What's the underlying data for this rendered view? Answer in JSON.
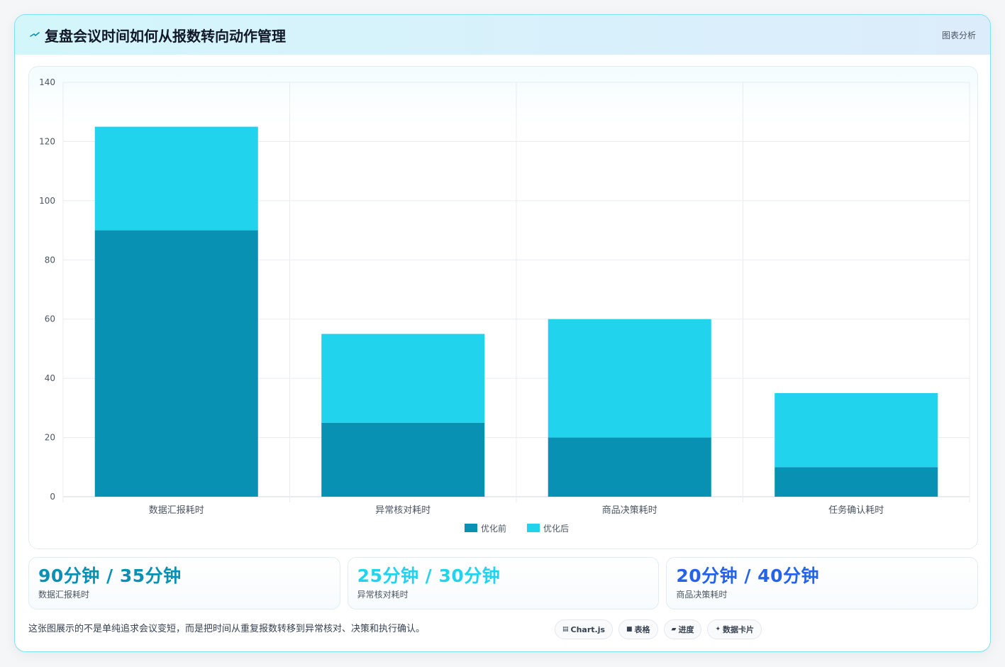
{
  "header": {
    "title": "复盘会议时间如何从报数转向动作管理",
    "tag": "图表分析"
  },
  "chart_data": {
    "type": "bar",
    "stacked": true,
    "categories": [
      "数据汇报耗时",
      "异常核对耗时",
      "商品决策耗时",
      "任务确认耗时"
    ],
    "series": [
      {
        "name": "优化前",
        "values": [
          90,
          25,
          20,
          10
        ],
        "color": "#0891b2"
      },
      {
        "name": "优化后",
        "values": [
          35,
          30,
          40,
          25
        ],
        "color": "#22d3ee"
      }
    ],
    "ylim": [
      0,
      140
    ],
    "yticks": [
      0,
      20,
      40,
      60,
      80,
      100,
      120,
      140
    ],
    "grid": true,
    "legend": "bottom"
  },
  "stats": [
    {
      "value": "90分钟 / 35分钟",
      "label": "数据汇报耗时",
      "color": "#0891b2"
    },
    {
      "value": "25分钟 / 30分钟",
      "label": "异常核对耗时",
      "color": "#22d3ee"
    },
    {
      "value": "20分钟 / 40分钟",
      "label": "商品决策耗时",
      "color": "#2563eb"
    }
  ],
  "footer": {
    "note": "这张图展示的不是单纯追求会议变短，而是把时间从重复报数转移到异常核对、决策和执行确认。",
    "chips": [
      {
        "icon": "▤",
        "label": "Chart.js"
      },
      {
        "icon": "■",
        "label": "表格"
      },
      {
        "icon": "▰",
        "label": "进度"
      },
      {
        "icon": "✦",
        "label": "数据卡片"
      }
    ]
  }
}
